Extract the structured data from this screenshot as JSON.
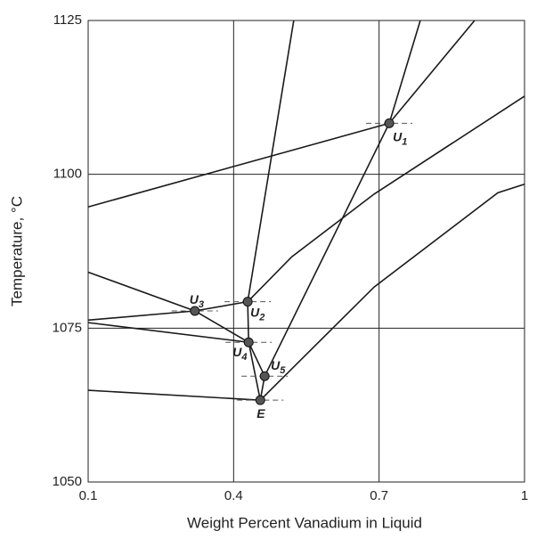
{
  "chart_data": {
    "type": "phase-diagram",
    "xlabel": "Weight Percent Vanadium in Liquid",
    "ylabel": "Temperature, °C",
    "xlim": [
      0.1,
      1.0
    ],
    "xticks": [
      0.1,
      0.4,
      0.7,
      1.0
    ],
    "ylim": [
      1050,
      1125
    ],
    "yticks": [
      1050,
      1075,
      1100,
      1125
    ],
    "grid": true,
    "color": "#1a1a1a",
    "point_color": "#555555",
    "lines": [
      {
        "x": [
          0.1,
          0.721
        ],
        "y": [
          1094.7,
          1108.3
        ]
      },
      {
        "x": [
          0.721,
          0.897
        ],
        "y": [
          1108.3,
          1125
        ]
      },
      {
        "x": [
          0.785,
          0.721,
          0.464
        ],
        "y": [
          1125,
          1108.3,
          1067.2
        ]
      },
      {
        "x": [
          0.429,
          0.52,
          0.69,
          1.0
        ],
        "y": [
          1079.3,
          1086.6,
          1096.8,
          1112.7
        ]
      },
      {
        "x": [
          0.455,
          0.69,
          0.945,
          1.0
        ],
        "y": [
          1063.3,
          1081.7,
          1097,
          1098.4
        ]
      },
      {
        "x": [
          0.524,
          0.429
        ],
        "y": [
          1125,
          1079.3
        ]
      },
      {
        "x": [
          0.429,
          0.431,
          0.455
        ],
        "y": [
          1079.3,
          1072.7,
          1063.3
        ]
      },
      {
        "x": [
          0.1,
          0.32,
          0.429
        ],
        "y": [
          1076.3,
          1077.8,
          1079.3
        ]
      },
      {
        "x": [
          0.1,
          0.32,
          0.431
        ],
        "y": [
          1084.1,
          1077.8,
          1072.7
        ]
      },
      {
        "x": [
          0.1,
          0.431,
          0.464
        ],
        "y": [
          1075.9,
          1072.7,
          1067.2
        ]
      },
      {
        "x": [
          0.1,
          0.455
        ],
        "y": [
          1064.9,
          1063.3
        ]
      },
      {
        "x": [
          0.464,
          0.455
        ],
        "y": [
          1067.2,
          1063.3
        ]
      }
    ],
    "points": [
      {
        "label": "U",
        "sub": "1",
        "x": 0.721,
        "y": 1108.3
      },
      {
        "label": "U",
        "sub": "2",
        "x": 0.429,
        "y": 1079.3
      },
      {
        "label": "U",
        "sub": "3",
        "x": 0.32,
        "y": 1077.8
      },
      {
        "label": "U",
        "sub": "4",
        "x": 0.431,
        "y": 1072.7
      },
      {
        "label": "U",
        "sub": "5",
        "x": 0.464,
        "y": 1067.2
      },
      {
        "label": "E",
        "x": 0.455,
        "y": 1063.3
      }
    ]
  }
}
